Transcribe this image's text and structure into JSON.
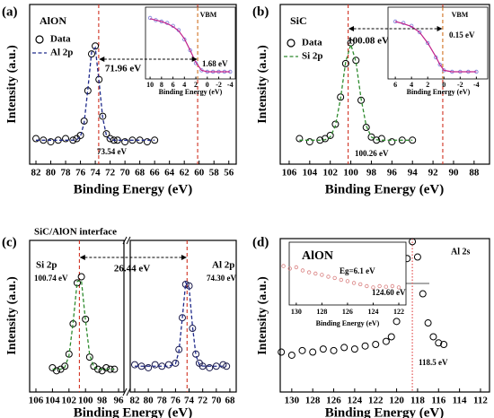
{
  "chart_data": [
    {
      "type": "scatter",
      "panel_label": "(a)",
      "title": "AlON",
      "xlabel": "Binding Energy (eV)",
      "ylabel": "Intensity (a.u.)",
      "xlim": [
        82.85,
        55
      ],
      "xticks": [
        82,
        80,
        78,
        76,
        74,
        72,
        70,
        68,
        66,
        64,
        62,
        60,
        58,
        56
      ],
      "ylim": [
        0,
        1
      ],
      "x": [
        82,
        81,
        80,
        79,
        78,
        77,
        76.5,
        76,
        75.5,
        75,
        74.5,
        74,
        73.5,
        73,
        72.5,
        72,
        71.5,
        71,
        70,
        69,
        68,
        67,
        66
      ],
      "series": [
        {
          "name": "Data",
          "color": "#000000",
          "style": "markers",
          "values": [
            0.16,
            0.15,
            0.14,
            0.15,
            0.16,
            0.15,
            0.16,
            0.18,
            0.27,
            0.46,
            0.69,
            0.74,
            0.53,
            0.3,
            0.19,
            0.16,
            0.15,
            0.15,
            0.14,
            0.15,
            0.15,
            0.14,
            0.15
          ]
        },
        {
          "name": "Al 2p",
          "color": "#1f2a8a",
          "style": "dashed",
          "values": [
            0.15,
            0.15,
            0.15,
            0.15,
            0.15,
            0.15,
            0.153,
            0.173,
            0.26,
            0.47,
            0.7,
            0.73,
            0.52,
            0.29,
            0.18,
            0.155,
            0.15,
            0.15,
            0.15,
            0.15,
            0.15,
            0.15,
            0.15
          ]
        }
      ],
      "ref_lines": [
        73.54,
        60.2
      ],
      "ref_color": "#d03020",
      "legend": true,
      "annotations": [
        "71.96 eV",
        "73.54 eV"
      ]
    },
    {
      "type": "scatter",
      "xlabel": "Binding Energy (eV)",
      "xlim": [
        10.8,
        -4.9
      ],
      "xticks": [
        10,
        8,
        6,
        4,
        2,
        0,
        -2,
        -4
      ],
      "ylim": [
        0,
        1
      ],
      "x": [
        10,
        9,
        8,
        7,
        6,
        5,
        4,
        3,
        2,
        1,
        0,
        -1,
        -2,
        -3,
        -4
      ],
      "series": [
        {
          "color": "#7a7ad8",
          "style": "markers",
          "values": [
            0.85,
            0.82,
            0.8,
            0.78,
            0.74,
            0.68,
            0.55,
            0.4,
            0.22,
            0.12,
            0.1,
            0.1,
            0.1,
            0.1,
            0.1
          ]
        },
        {
          "color": "#c0208a",
          "style": "line",
          "values": [
            0.84,
            0.82,
            0.8,
            0.77,
            0.73,
            0.67,
            0.56,
            0.4,
            0.23,
            0.12,
            0.1,
            0.1,
            0.1,
            0.1,
            0.1
          ]
        }
      ],
      "ref_lines": [
        1.68
      ],
      "ref_color": "#d07020",
      "legend": false,
      "annotations": [
        "VBM",
        "1.68 eV"
      ]
    },
    {
      "type": "scatter",
      "panel_label": "(b)",
      "title": "SiC",
      "xlabel": "Binding Energy (eV)",
      "ylabel": "Intensity (a.u.)",
      "xlim": [
        106.87,
        86.5
      ],
      "xticks": [
        106,
        104,
        102,
        100,
        98,
        96,
        94,
        92,
        90,
        88
      ],
      "ylim": [
        0,
        1
      ],
      "x": [
        105,
        104,
        103,
        102.5,
        102,
        101.5,
        101,
        100.5,
        100,
        99.5,
        99,
        98.5,
        98,
        97.5,
        97,
        96,
        95,
        94
      ],
      "series": [
        {
          "name": "Data",
          "color": "#000000",
          "style": "markers",
          "values": [
            0.16,
            0.14,
            0.15,
            0.16,
            0.18,
            0.25,
            0.42,
            0.63,
            0.76,
            0.65,
            0.4,
            0.23,
            0.17,
            0.15,
            0.16,
            0.14,
            0.15,
            0.15
          ]
        },
        {
          "name": "Si 2p",
          "color": "#2e8b2e",
          "style": "dashed",
          "values": [
            0.15,
            0.15,
            0.15,
            0.153,
            0.17,
            0.24,
            0.41,
            0.64,
            0.75,
            0.64,
            0.41,
            0.24,
            0.17,
            0.153,
            0.15,
            0.15,
            0.15,
            0.15
          ]
        }
      ],
      "ref_lines": [
        100.26,
        91.05
      ],
      "ref_color": "#d03020",
      "legend": true,
      "annotations": [
        "100.08 eV",
        "100.26 eV"
      ]
    },
    {
      "type": "scatter",
      "xlabel": "Binding Energy (eV)",
      "xlim": [
        6.9,
        -5.4
      ],
      "xticks": [
        6,
        4,
        2,
        0,
        -2,
        -4
      ],
      "ylim": [
        0,
        1
      ],
      "x": [
        6,
        5,
        4,
        3,
        2,
        1,
        0.5,
        0,
        -1,
        -2,
        -3,
        -4
      ],
      "series": [
        {
          "color": "#7a7ad8",
          "style": "markers",
          "values": [
            0.8,
            0.78,
            0.74,
            0.65,
            0.5,
            0.3,
            0.2,
            0.12,
            0.1,
            0.1,
            0.1,
            0.1
          ]
        },
        {
          "color": "#c0208a",
          "style": "line",
          "values": [
            0.8,
            0.77,
            0.73,
            0.65,
            0.5,
            0.31,
            0.2,
            0.12,
            0.1,
            0.1,
            0.1,
            0.1
          ]
        }
      ],
      "ref_lines": [
        0.15
      ],
      "ref_color": "#d07020",
      "legend": false,
      "annotations": [
        "VBM",
        "0.15 eV"
      ]
    },
    {
      "type": "scatter",
      "panel_label": "(c)",
      "title": "SiC/AlON interface",
      "xlabel": "Binding Energy (eV)",
      "ylabel": "Intensity (a.u.)",
      "xlim": [
        106.76,
        95.35
      ],
      "xticks": [
        106,
        104,
        102,
        100,
        98,
        96
      ],
      "ylim": [
        0,
        1
      ],
      "x": [
        104,
        103.5,
        103,
        102.5,
        102,
        101.5,
        101,
        100.5,
        100,
        99.5,
        99,
        98.5,
        98,
        97.5,
        97,
        96.5
      ],
      "series": [
        {
          "color": "#000000",
          "style": "markers",
          "values": [
            0.16,
            0.14,
            0.15,
            0.17,
            0.25,
            0.45,
            0.72,
            0.76,
            0.48,
            0.23,
            0.17,
            0.15,
            0.14,
            0.16,
            0.15,
            0.15
          ]
        },
        {
          "color": "#2e8b2e",
          "style": "dashed",
          "values": [
            0.15,
            0.15,
            0.15,
            0.164,
            0.239,
            0.459,
            0.73,
            0.736,
            0.471,
            0.245,
            0.165,
            0.15,
            0.15,
            0.15,
            0.15,
            0.15
          ]
        }
      ],
      "ref_lines": [
        100.74
      ],
      "ref_color": "#d03020",
      "legend": false,
      "annotations": [
        "Si 2p",
        "100.74 eV",
        "26.44 eV"
      ]
    },
    {
      "type": "scatter",
      "xlim": [
        82.66,
        67.07
      ],
      "xticks": [
        82,
        80,
        78,
        76,
        74,
        72,
        70,
        68
      ],
      "ylim": [
        0,
        1
      ],
      "x": [
        82,
        81,
        80,
        79,
        78,
        77,
        76,
        75.5,
        75,
        74.5,
        74,
        73.5,
        73,
        72.5,
        72,
        71,
        70,
        69,
        68.5
      ],
      "series": [
        {
          "color": "#1a1a4a",
          "style": "markers",
          "values": [
            0.18,
            0.17,
            0.16,
            0.18,
            0.17,
            0.18,
            0.19,
            0.28,
            0.49,
            0.71,
            0.7,
            0.42,
            0.25,
            0.19,
            0.17,
            0.16,
            0.17,
            0.18,
            0.17
          ]
        },
        {
          "color": "#1f2a8a",
          "style": "dashed",
          "values": [
            0.17,
            0.17,
            0.17,
            0.17,
            0.17,
            0.17,
            0.186,
            0.268,
            0.487,
            0.722,
            0.689,
            0.433,
            0.242,
            0.18,
            0.171,
            0.17,
            0.17,
            0.17,
            0.17
          ]
        }
      ],
      "ref_lines": [
        74.3
      ],
      "ref_color": "#d03020",
      "legend": false,
      "annotations": [
        "Al 2p",
        "74.30 eV"
      ]
    },
    {
      "type": "scatter",
      "panel_label": "(d)",
      "xlabel": "Binding Energy (eV)",
      "ylabel": "Intensity (a.u.)",
      "xlim": [
        131.1,
        111.14
      ],
      "xticks": [
        130,
        128,
        126,
        124,
        122,
        120,
        118,
        116,
        114,
        112
      ],
      "ylim": [
        0,
        1
      ],
      "x": [
        131,
        130,
        129,
        128,
        127,
        126,
        125,
        124,
        123,
        122,
        121,
        120.5,
        120,
        119.5,
        119,
        118.5,
        118,
        117.5,
        117,
        116.5,
        116,
        115.5
      ],
      "series": [
        {
          "color": "#000000",
          "style": "markers",
          "values": [
            0.26,
            0.24,
            0.27,
            0.26,
            0.28,
            0.27,
            0.29,
            0.28,
            0.3,
            0.31,
            0.33,
            0.36,
            0.46,
            0.65,
            0.87,
            0.98,
            0.88,
            0.64,
            0.45,
            0.36,
            0.32,
            0.31
          ]
        }
      ],
      "ref_lines": [
        118.5
      ],
      "ref_color": "#e04040",
      "legend": false,
      "annotations": [
        "Al 2s",
        "118.5 eV"
      ]
    },
    {
      "type": "scatter",
      "title": "AlON",
      "xlabel": "Binding Energy (eV)",
      "xlim": [
        130.55,
        121.44
      ],
      "xticks": [
        130,
        128,
        126,
        124,
        122
      ],
      "ylim": [
        0,
        1
      ],
      "x": [
        131,
        130.5,
        130,
        129.5,
        129,
        128.5,
        128,
        127.5,
        127,
        126.5,
        126,
        125.5,
        125,
        124.5,
        124,
        123.5,
        123,
        122.5,
        122
      ],
      "series": [
        {
          "color": "#d98080",
          "style": "markers",
          "values": [
            0.62,
            0.58,
            0.6,
            0.55,
            0.52,
            0.5,
            0.48,
            0.45,
            0.43,
            0.4,
            0.38,
            0.35,
            0.33,
            0.3,
            0.28,
            0.3,
            0.29,
            0.3,
            0.28
          ]
        }
      ],
      "ref_lines": [],
      "legend": false,
      "annotations": [
        "Eg=6.1 eV",
        "124.60 eV"
      ]
    }
  ]
}
